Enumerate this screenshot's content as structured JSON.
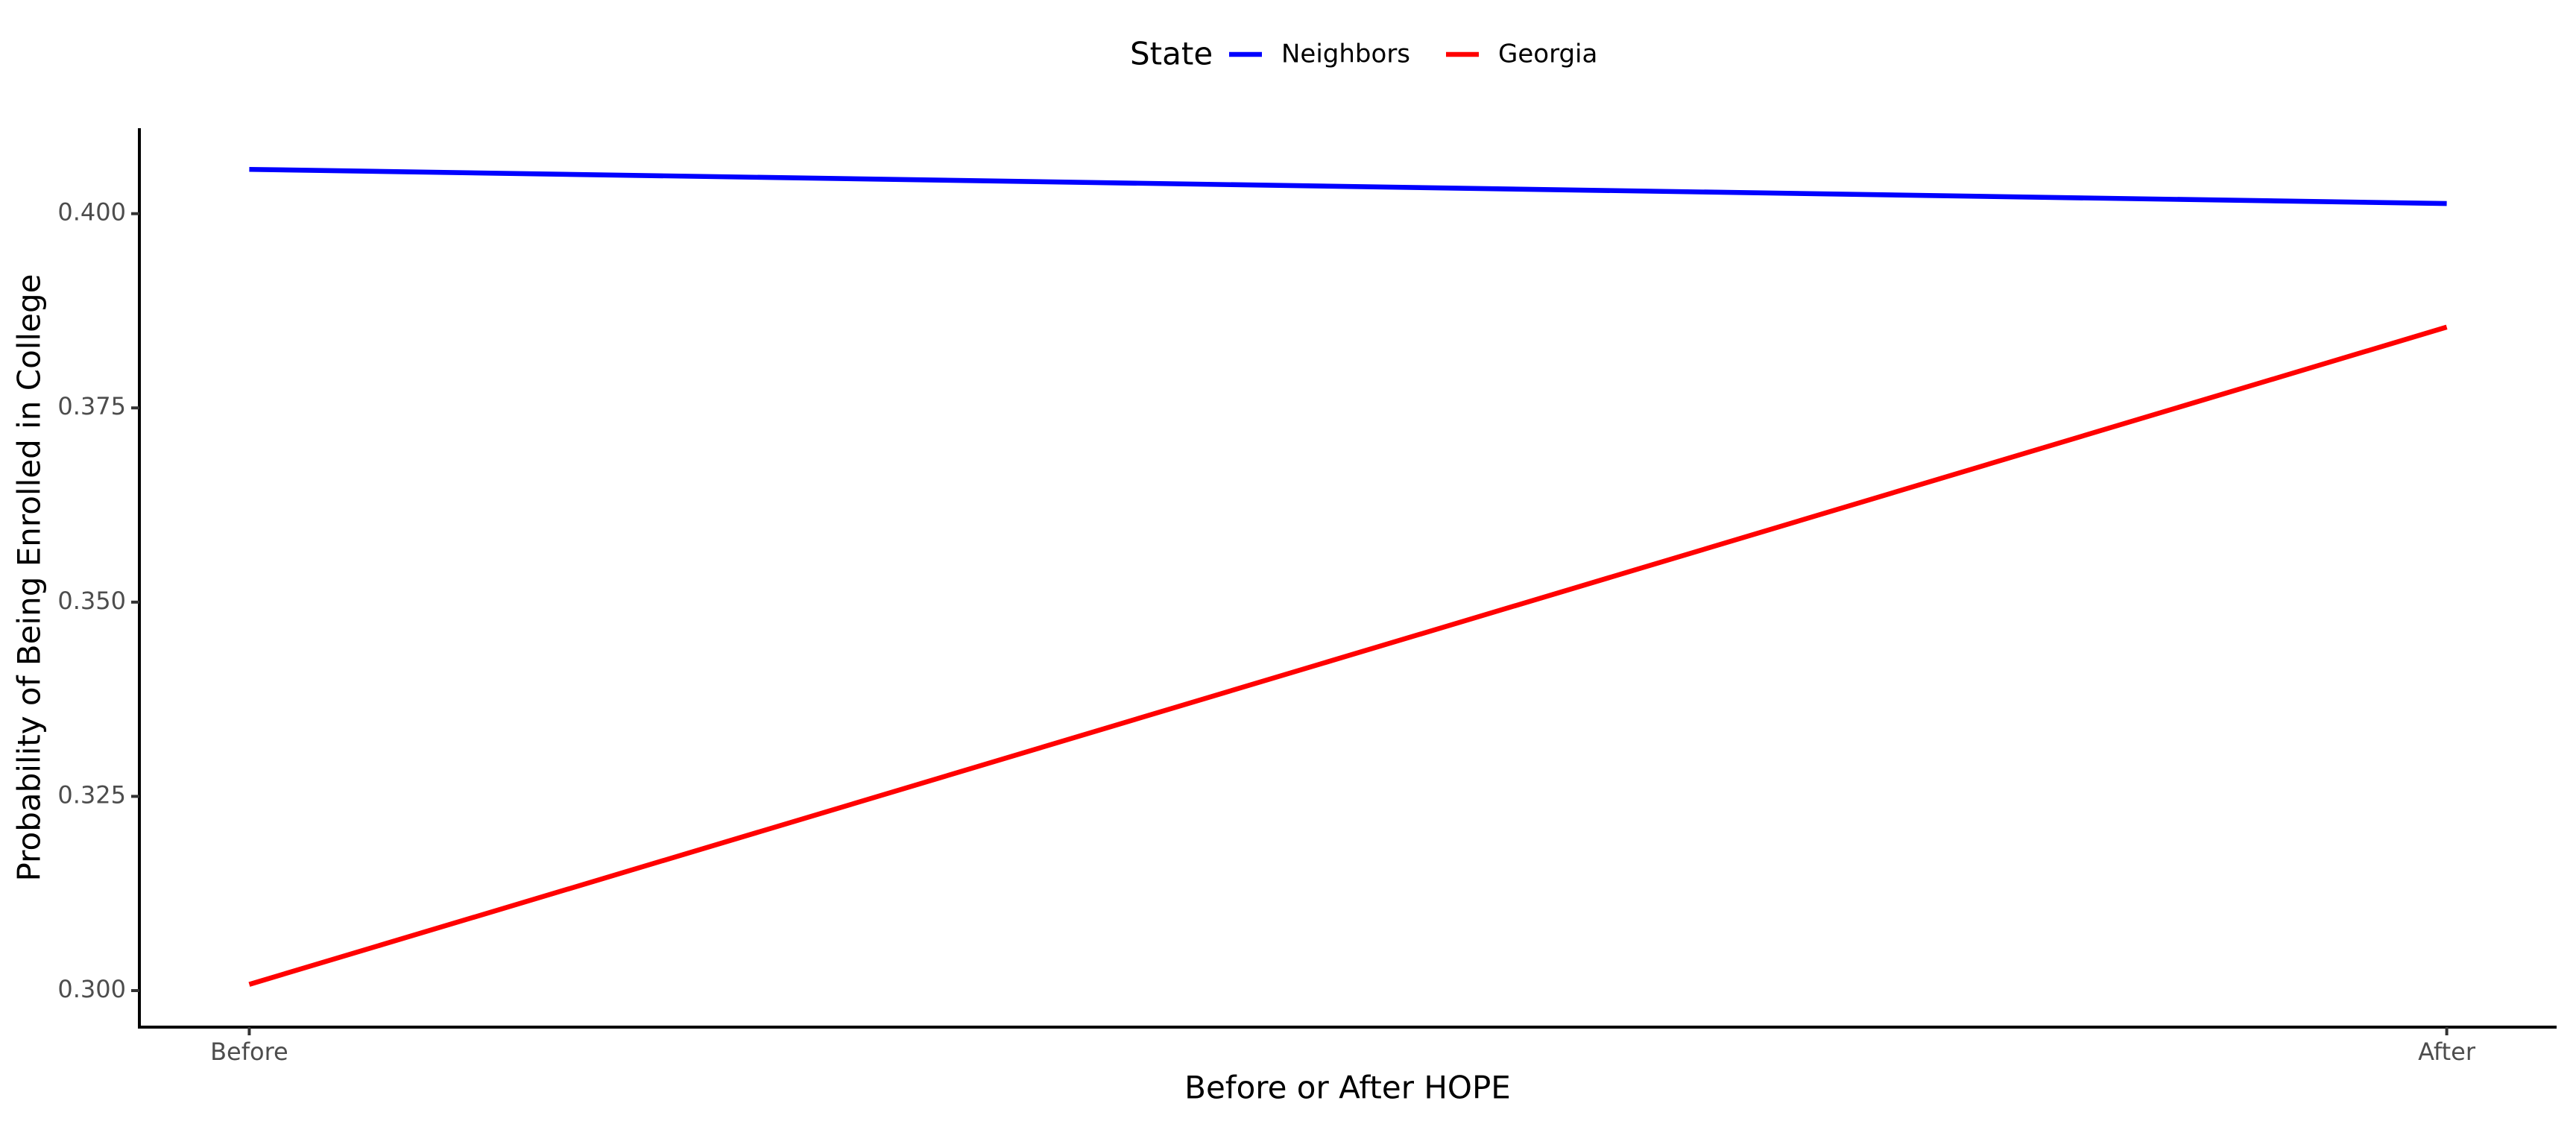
{
  "chart_data": {
    "type": "line",
    "x_label": "Before or After HOPE",
    "y_label": "Probability of Being Enrolled in College",
    "legend_title": "State",
    "legend": "top",
    "categories": [
      "Before",
      "After"
    ],
    "series": [
      {
        "name": "Neighbors",
        "color": "#0000ff",
        "values": [
          0.4057,
          0.4013
        ]
      },
      {
        "name": "Georgia",
        "color": "#ff0000",
        "values": [
          0.3008,
          0.3854
        ]
      }
    ],
    "ylim": [
      0.2953,
      0.411
    ],
    "yticks": [
      {
        "value": 0.3,
        "label": "0.300"
      },
      {
        "value": 0.325,
        "label": "0.325"
      },
      {
        "value": 0.35,
        "label": "0.350"
      },
      {
        "value": 0.375,
        "label": "0.375"
      },
      {
        "value": 0.4,
        "label": "0.400"
      }
    ],
    "grid": false
  }
}
